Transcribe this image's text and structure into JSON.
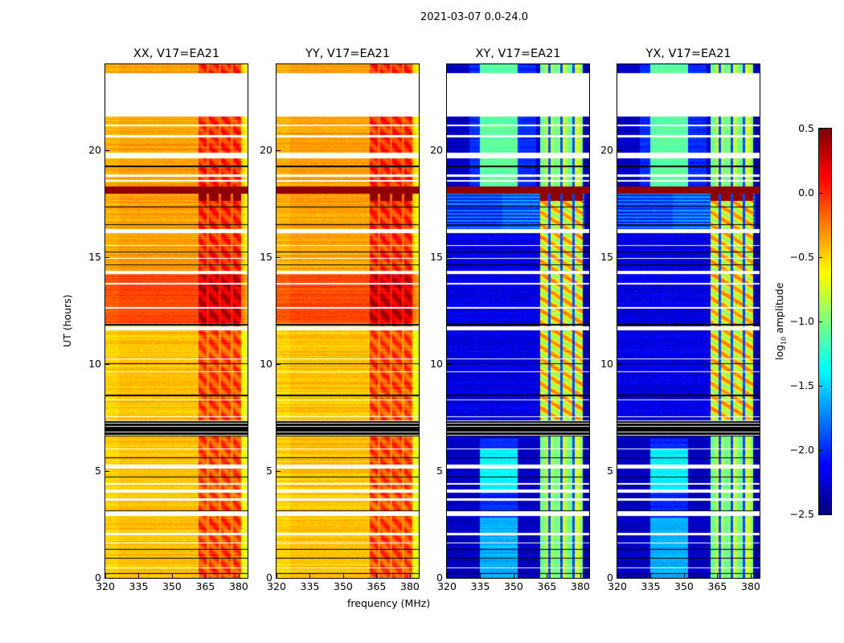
{
  "chart_data": {
    "type": "heatmap",
    "title": "2021-03-07 0.0-24.0",
    "xlabel": "frequency (MHz)",
    "ylabel": "UT (hours)",
    "xlim": [
      320,
      384
    ],
    "ylim": [
      0,
      24
    ],
    "xticks": [
      "320",
      "335",
      "350",
      "365",
      "380"
    ],
    "yticks": [
      "0",
      "5",
      "10",
      "15",
      "20"
    ],
    "colorbar": {
      "label": "log10 amplitude",
      "colormap": "jet",
      "range": [
        -2.5,
        0.5
      ],
      "ticks": [
        "0.5",
        "0.0",
        "−0.5",
        "−1.0",
        "−1.5",
        "−2.0",
        "−2.5"
      ]
    },
    "panels": [
      {
        "title": "XX, V17=EA21",
        "pol": "parallel"
      },
      {
        "title": "YY, V17=EA21",
        "pol": "parallel"
      },
      {
        "title": "XY, V17=EA21",
        "pol": "cross"
      },
      {
        "title": "YX, V17=EA21",
        "pol": "cross"
      }
    ],
    "flagged_white_hours": [
      [
        23.45,
        23.6
      ],
      [
        21.55,
        23.45
      ],
      [
        21.1,
        21.2
      ],
      [
        20.6,
        20.7
      ],
      [
        19.6,
        19.85
      ],
      [
        18.75,
        18.85
      ],
      [
        18.5,
        18.6
      ],
      [
        16.1,
        16.3
      ],
      [
        15.5,
        15.55
      ],
      [
        14.9,
        14.95
      ],
      [
        14.2,
        14.35
      ],
      [
        13.7,
        13.8
      ],
      [
        12.6,
        12.65
      ],
      [
        11.55,
        11.75
      ],
      [
        10.2,
        10.25
      ],
      [
        9.6,
        9.65
      ],
      [
        8.3,
        8.35
      ],
      [
        7.5,
        7.55
      ],
      [
        6.0,
        6.05
      ],
      [
        5.1,
        5.3
      ],
      [
        4.35,
        4.45
      ],
      [
        4.0,
        4.15
      ],
      [
        3.6,
        3.7
      ],
      [
        2.9,
        3.1
      ],
      [
        2.0,
        2.1
      ],
      [
        1.6,
        1.65
      ],
      [
        0.45,
        0.5
      ]
    ],
    "flagged_black_hours": [
      [
        19.2,
        19.25
      ],
      [
        17.3,
        17.34
      ],
      [
        16.5,
        16.54
      ],
      [
        15.2,
        15.24
      ],
      [
        14.6,
        14.65
      ],
      [
        11.8,
        11.87
      ],
      [
        10.0,
        10.04
      ],
      [
        8.5,
        8.55
      ],
      [
        6.6,
        7.35
      ],
      [
        5.6,
        5.64
      ],
      [
        4.7,
        4.74
      ],
      [
        3.1,
        3.15
      ],
      [
        1.3,
        1.36
      ],
      [
        0.9,
        0.94
      ],
      [
        0.2,
        0.24
      ]
    ],
    "saturated_band_hours": [
      17.95,
      18.3
    ],
    "rfi_band_mhz": [
      362,
      381
    ]
  }
}
